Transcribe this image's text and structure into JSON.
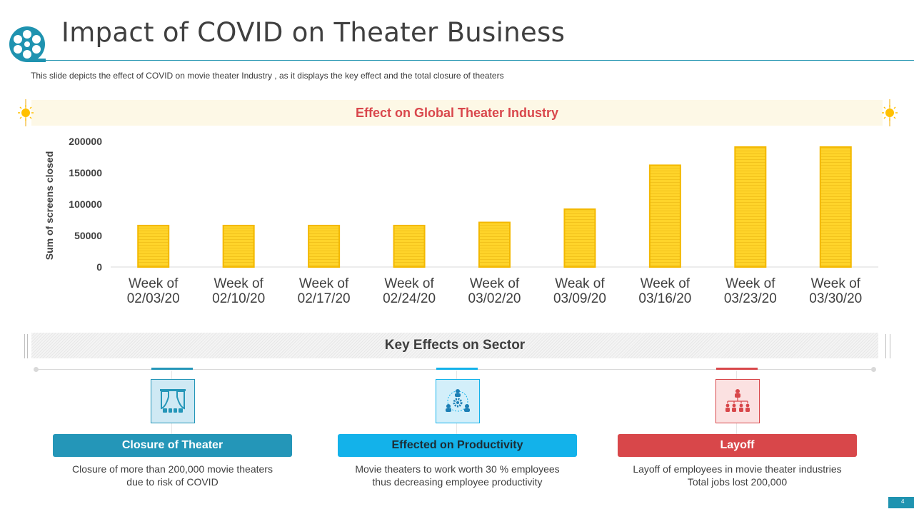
{
  "header": {
    "title": "Impact of COVID on Theater Business",
    "subtitle": "This slide depicts the effect of COVID on movie theater Industry , as it displays the key effect and the total closure of theaters"
  },
  "chart_section": {
    "band_title": "Effect on Global Theater Industry"
  },
  "chart_data": {
    "type": "bar",
    "title": "Effect on Global Theater Industry",
    "xlabel": "",
    "ylabel": "Sum of screens closed",
    "ylim": [
      0,
      200000
    ],
    "yticks": [
      "200000",
      "150000",
      "100000",
      "50000",
      "0"
    ],
    "grid": false,
    "categories": [
      [
        "Week of",
        "02/03/20"
      ],
      [
        "Week of",
        "02/10/20"
      ],
      [
        "Week of",
        "02/17/20"
      ],
      [
        "Week of",
        "02/24/20"
      ],
      [
        "Week of",
        "03/02/20"
      ],
      [
        "Weak of",
        "03/09/20"
      ],
      [
        "Week of",
        "03/16/20"
      ],
      [
        "Week of",
        "03/23/20"
      ],
      [
        "Week of",
        "03/30/20"
      ]
    ],
    "values": [
      66000,
      66000,
      66000,
      66000,
      71000,
      92000,
      162000,
      191000,
      191000
    ],
    "bar_color": "#ffd42a",
    "bar_edge_color": "#f3b800"
  },
  "key_effects": {
    "title": "Key Effects on Sector",
    "items": [
      {
        "label": "Closure of Theater",
        "desc_line1": "Closure of more than 200,000 movie theaters",
        "desc_line2": "due to risk of COVID",
        "color": "#2496b8",
        "icon": "theater-curtain-icon"
      },
      {
        "label": "Effected on Productivity",
        "desc_line1": "Movie theaters to work worth 30 % employees",
        "desc_line2": "thus decreasing employee productivity",
        "color": "#13b2ea",
        "icon": "team-gear-icon"
      },
      {
        "label": "Layoff",
        "desc_line1": "Layoff of employees in movie theater industries",
        "desc_line2": "Total jobs lost 200,000",
        "color": "#d8474a",
        "icon": "org-chart-icon"
      }
    ]
  },
  "footer": {
    "page_number": "4"
  },
  "colors": {
    "accent": "#1f93b0",
    "red": "#d9474c",
    "gold": "#ffd42a"
  }
}
